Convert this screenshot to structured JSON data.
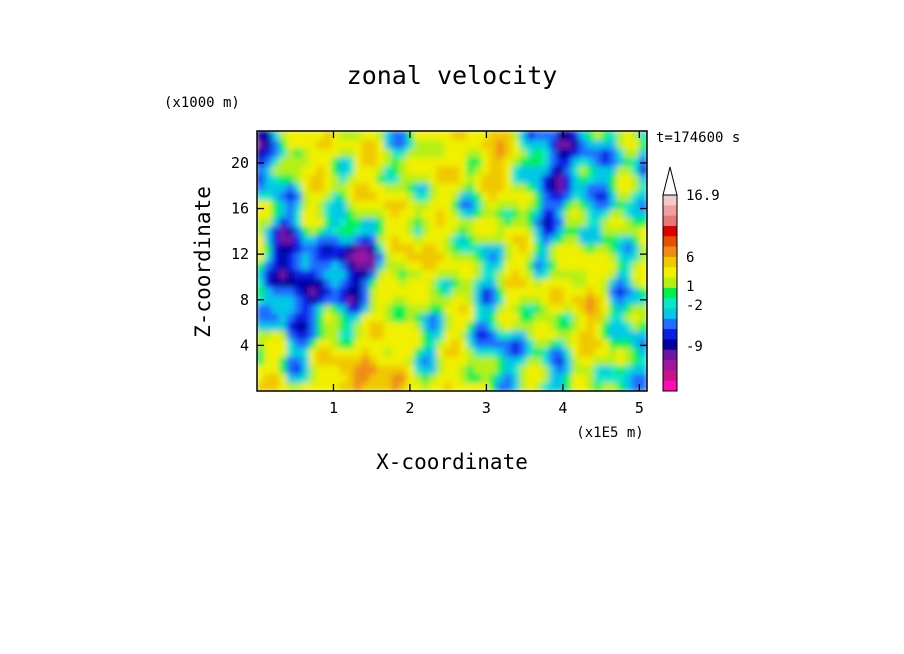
{
  "chart_data": {
    "type": "heatmap",
    "title": "zonal velocity",
    "xlabel": "X-coordinate",
    "ylabel": "Z-coordinate",
    "x_unit": "(x1E5 m)",
    "y_unit": "(x1000 m)",
    "timestamp": "t=174600 s",
    "xlim": [
      0.0,
      5.1
    ],
    "ylim": [
      0.0,
      22.8
    ],
    "x_ticks": [
      1,
      2,
      3,
      4,
      5
    ],
    "y_ticks": [
      4,
      8,
      12,
      16,
      20
    ],
    "colorbar": {
      "max_label": "16.9",
      "tick_labels": [
        "6",
        "1",
        "-2",
        "-9"
      ],
      "levels": [
        {
          "level": -15.0,
          "color": "#ff0ab4"
        },
        {
          "level": -12.0,
          "color": "#c8148c"
        },
        {
          "level": -9.0,
          "color": "#a014a0"
        },
        {
          "level": -6.0,
          "color": "#6e14a0"
        },
        {
          "level": -4.0,
          "color": "#0000a0"
        },
        {
          "level": -3.0,
          "color": "#0a1ee6"
        },
        {
          "level": -2.0,
          "color": "#1e6eff"
        },
        {
          "level": -1.0,
          "color": "#00c8e6"
        },
        {
          "level": 0.0,
          "color": "#0ae6c8"
        },
        {
          "level": 0.5,
          "color": "#00f050"
        },
        {
          "level": 1.0,
          "color": "#b4f014"
        },
        {
          "level": 2.0,
          "color": "#f0f000"
        },
        {
          "level": 4.0,
          "color": "#f0c800"
        },
        {
          "level": 6.0,
          "color": "#f08c14"
        },
        {
          "level": 8.0,
          "color": "#e65000"
        },
        {
          "level": 10.0,
          "color": "#dc0000"
        },
        {
          "level": 12.0,
          "color": "#e67878"
        },
        {
          "level": 14.0,
          "color": "#f0a0a0"
        },
        {
          "level": 16.9,
          "color": "#f5c8c8"
        }
      ]
    },
    "field_grid": {
      "x": [
        0,
        0.5,
        1,
        1.5,
        2,
        2.5,
        3,
        3.5,
        4,
        4.5,
        5
      ],
      "y": [
        0,
        4,
        8,
        12,
        16,
        20
      ],
      "values": [
        [
          3,
          2,
          4,
          8,
          2,
          3,
          2,
          1,
          0,
          0,
          1
        ],
        [
          1,
          0,
          2,
          5,
          1,
          2,
          0,
          -1,
          2,
          3,
          0
        ],
        [
          -1,
          -2,
          -3,
          1,
          2,
          1,
          1,
          2,
          4,
          3,
          -1
        ],
        [
          0,
          -3,
          -2,
          -5,
          6,
          2,
          1,
          2,
          1,
          2,
          1
        ],
        [
          1,
          0,
          2,
          3,
          3,
          1,
          2,
          1,
          -2,
          1,
          0
        ],
        [
          -2,
          2,
          3,
          2,
          1,
          3,
          4,
          2,
          -4,
          1,
          -1
        ]
      ]
    }
  }
}
